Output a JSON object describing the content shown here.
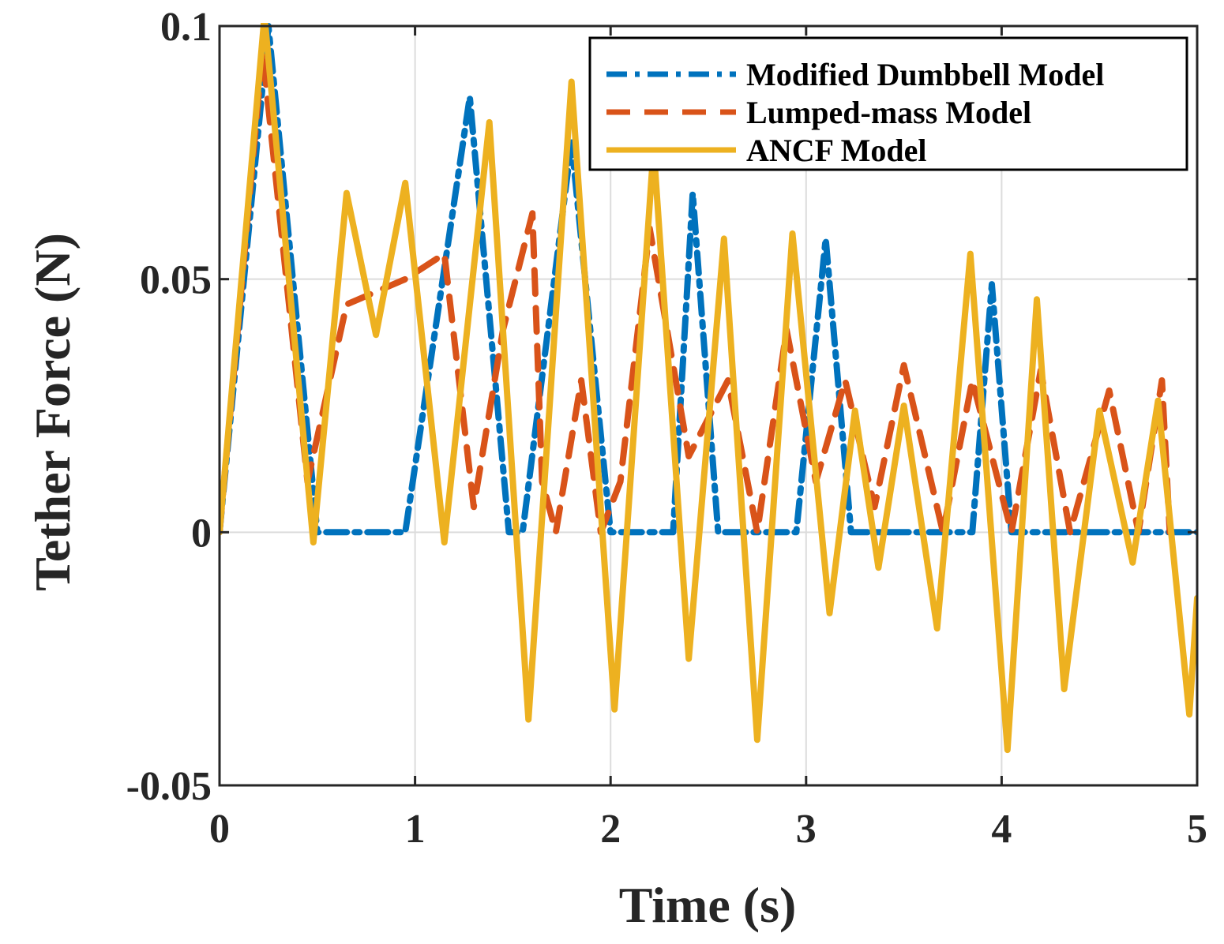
{
  "chart_data": {
    "type": "line",
    "title": "",
    "xlabel": "Time (s)",
    "ylabel": "Tether Force (N)",
    "xlim": [
      0,
      5
    ],
    "ylim": [
      -0.05,
      0.1
    ],
    "grid": true,
    "legend_position": "top-right",
    "x_ticks": [
      0,
      1,
      2,
      3,
      4,
      5
    ],
    "x_tick_labels": [
      "0",
      "1",
      "2",
      "3",
      "4",
      "5"
    ],
    "y_ticks": [
      -0.05,
      0,
      0.05,
      0.1
    ],
    "y_tick_labels": [
      "-0.05",
      "0",
      "0.05",
      "0.1"
    ],
    "series": [
      {
        "name": "Modified Dumbbell Model",
        "color": "#0072BD",
        "style": "dashdot",
        "x": [
          0,
          0.25,
          0.5,
          0.52,
          0.95,
          1.28,
          1.48,
          1.55,
          1.8,
          2.0,
          2.07,
          2.28,
          2.32,
          2.42,
          2.55,
          2.58,
          2.95,
          3.1,
          3.23,
          3.85,
          3.95,
          4.05,
          4.06,
          5.0
        ],
        "y": [
          0,
          0.1,
          0.0,
          0.0,
          0.0,
          0.086,
          0.0,
          0.0,
          0.077,
          0.0,
          0.0,
          0.0,
          0.0,
          0.067,
          0.0,
          0.0,
          0.0,
          0.058,
          0.0,
          0.0,
          0.049,
          0.0,
          0.0,
          0.0
        ]
      },
      {
        "name": "Lumped-mass Model",
        "color": "#D95319",
        "style": "dashed",
        "x": [
          0,
          0.22,
          0.45,
          0.65,
          0.95,
          1.15,
          1.3,
          1.45,
          1.6,
          1.65,
          1.72,
          1.85,
          1.95,
          2.05,
          2.2,
          2.4,
          2.6,
          2.75,
          2.9,
          3.05,
          3.2,
          3.35,
          3.5,
          3.7,
          3.85,
          4.05,
          4.2,
          4.35,
          4.55,
          4.7,
          4.82,
          4.86
        ],
        "y": [
          0,
          0.095,
          0.01,
          0.045,
          0.05,
          0.055,
          0.005,
          0.04,
          0.063,
          0.01,
          0.0,
          0.03,
          0.0,
          0.01,
          0.06,
          0.015,
          0.03,
          0.0,
          0.04,
          0.01,
          0.03,
          0.005,
          0.033,
          0.0,
          0.03,
          0.0,
          0.032,
          0.0,
          0.028,
          0.0,
          0.03,
          0.0
        ]
      },
      {
        "name": "ANCF Model",
        "color": "#EDB120",
        "style": "solid",
        "x": [
          0,
          0.23,
          0.48,
          0.65,
          0.8,
          0.95,
          1.15,
          1.38,
          1.58,
          1.8,
          2.02,
          2.22,
          2.4,
          2.58,
          2.75,
          2.93,
          3.12,
          3.25,
          3.37,
          3.5,
          3.67,
          3.84,
          4.03,
          4.18,
          4.32,
          4.5,
          4.67,
          4.8,
          4.96,
          5.0
        ],
        "y": [
          0,
          0.102,
          -0.002,
          0.067,
          0.039,
          0.069,
          -0.002,
          0.081,
          -0.037,
          0.089,
          -0.035,
          0.076,
          -0.025,
          0.058,
          -0.041,
          0.059,
          -0.016,
          0.024,
          -0.007,
          0.025,
          -0.019,
          0.055,
          -0.043,
          0.046,
          -0.031,
          0.024,
          -0.006,
          0.026,
          -0.036,
          -0.013
        ]
      }
    ]
  }
}
